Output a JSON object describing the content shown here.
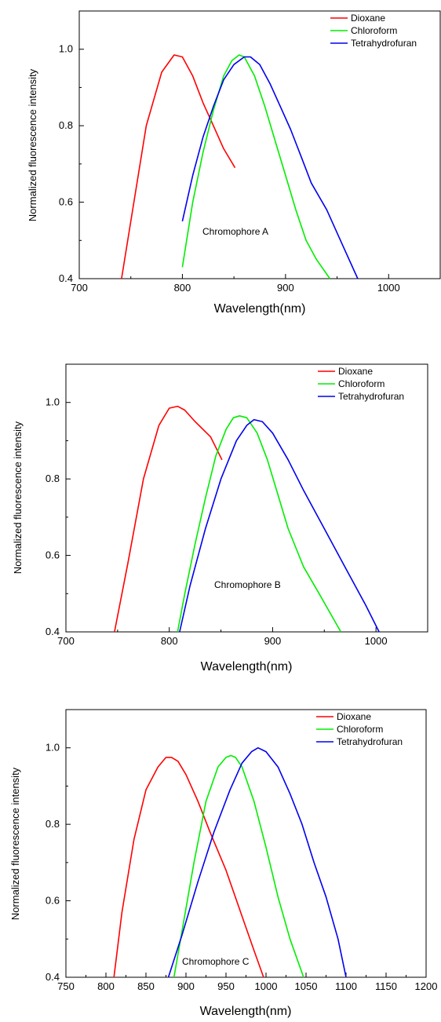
{
  "chart_data": [
    {
      "type": "line",
      "annotation": "Chromophore A",
      "xlabel": "Wavelength(nm)",
      "ylabel": "Normalized fluorescence intensity",
      "xlim": [
        700,
        1050
      ],
      "ylim": [
        0.4,
        1.1
      ],
      "xticks": [
        700,
        800,
        900,
        1000
      ],
      "xtick_labels": [
        "700",
        "800",
        "900",
        "1000"
      ],
      "yticks": [
        0.4,
        0.6,
        0.8,
        1.0
      ],
      "ytick_labels": [
        "0.4",
        "0.6",
        "0.8",
        "1.0"
      ],
      "legend_position": "top-right",
      "series": [
        {
          "name": "Dioxane",
          "color": "#ff0000",
          "x": [
            741,
            750,
            765,
            780,
            792,
            800,
            810,
            820,
            830,
            840,
            851
          ],
          "y": [
            0.4,
            0.55,
            0.8,
            0.94,
            0.985,
            0.98,
            0.93,
            0.86,
            0.8,
            0.74,
            0.69
          ]
        },
        {
          "name": "Chloroform",
          "color": "#00ee00",
          "x": [
            800,
            810,
            820,
            830,
            840,
            848,
            855,
            860,
            870,
            880,
            890,
            900,
            910,
            920,
            930,
            943
          ],
          "y": [
            0.43,
            0.6,
            0.73,
            0.84,
            0.93,
            0.97,
            0.985,
            0.98,
            0.93,
            0.85,
            0.76,
            0.67,
            0.58,
            0.5,
            0.45,
            0.4
          ]
        },
        {
          "name": "Tetrahydrofuran",
          "color": "#0000ee",
          "x": [
            800,
            810,
            820,
            830,
            840,
            850,
            860,
            866,
            875,
            885,
            895,
            905,
            915,
            925,
            940,
            955,
            970
          ],
          "y": [
            0.55,
            0.67,
            0.77,
            0.85,
            0.92,
            0.96,
            0.98,
            0.98,
            0.96,
            0.91,
            0.85,
            0.79,
            0.72,
            0.65,
            0.58,
            0.49,
            0.4
          ]
        }
      ]
    },
    {
      "type": "line",
      "annotation": "Chromophore B",
      "xlabel": "Wavelength(nm)",
      "ylabel": "Normalized fluorescence intensity",
      "xlim": [
        700,
        1050
      ],
      "ylim": [
        0.4,
        1.1
      ],
      "xticks": [
        700,
        800,
        900,
        1000
      ],
      "xtick_labels": [
        "700",
        "800",
        "900",
        "1000"
      ],
      "yticks": [
        0.4,
        0.6,
        0.8,
        1.0
      ],
      "ytick_labels": [
        "0.4",
        "0.6",
        "0.8",
        "1.0"
      ],
      "legend_position": "top-right",
      "series": [
        {
          "name": "Dioxane",
          "color": "#ff0000",
          "x": [
            747,
            760,
            775,
            790,
            800,
            808,
            815,
            825,
            840,
            851
          ],
          "y": [
            0.4,
            0.58,
            0.8,
            0.94,
            0.985,
            0.99,
            0.98,
            0.95,
            0.91,
            0.85
          ]
        },
        {
          "name": "Chloroform",
          "color": "#00ee00",
          "x": [
            808,
            815,
            825,
            835,
            845,
            855,
            862,
            868,
            875,
            885,
            895,
            905,
            915,
            930,
            945,
            966
          ],
          "y": [
            0.4,
            0.5,
            0.63,
            0.75,
            0.86,
            0.93,
            0.96,
            0.965,
            0.96,
            0.92,
            0.85,
            0.76,
            0.67,
            0.57,
            0.5,
            0.4
          ]
        },
        {
          "name": "Tetrahydrofuran",
          "color": "#0000ee",
          "x": [
            810,
            820,
            835,
            850,
            865,
            875,
            882,
            890,
            900,
            915,
            930,
            950,
            970,
            990,
            1003
          ],
          "y": [
            0.4,
            0.52,
            0.67,
            0.8,
            0.9,
            0.94,
            0.955,
            0.95,
            0.92,
            0.85,
            0.77,
            0.67,
            0.57,
            0.47,
            0.4
          ]
        }
      ]
    },
    {
      "type": "line",
      "annotation": "Chromophore C",
      "xlabel": "Wavelength(nm)",
      "ylabel": "Normalized fluorescence intensity",
      "xlim": [
        750,
        1200
      ],
      "ylim": [
        0.4,
        1.1
      ],
      "xticks": [
        750,
        800,
        850,
        900,
        950,
        1000,
        1050,
        1100,
        1150,
        1200
      ],
      "xtick_labels": [
        "750",
        "800",
        "850",
        "900",
        "950",
        "1000",
        "1050",
        "1100",
        "1150",
        "1200"
      ],
      "yticks": [
        0.4,
        0.6,
        0.8,
        1.0
      ],
      "ytick_labels": [
        "0.4",
        "0.6",
        "0.8",
        "1.0"
      ],
      "legend_position": "top-right",
      "series": [
        {
          "name": "Dioxane",
          "color": "#ff0000",
          "x": [
            810,
            820,
            835,
            850,
            865,
            875,
            882,
            890,
            900,
            915,
            930,
            950,
            970,
            985,
            997
          ],
          "y": [
            0.4,
            0.57,
            0.76,
            0.89,
            0.95,
            0.975,
            0.975,
            0.965,
            0.93,
            0.86,
            0.78,
            0.68,
            0.56,
            0.47,
            0.4
          ]
        },
        {
          "name": "Chloroform",
          "color": "#00ee00",
          "x": [
            885,
            895,
            910,
            925,
            940,
            950,
            956,
            962,
            970,
            985,
            1000,
            1015,
            1030,
            1047
          ],
          "y": [
            0.4,
            0.52,
            0.7,
            0.86,
            0.95,
            0.975,
            0.98,
            0.975,
            0.95,
            0.86,
            0.74,
            0.61,
            0.5,
            0.4
          ]
        },
        {
          "name": "Tetrahydrofuran",
          "color": "#0000ee",
          "x": [
            878,
            895,
            915,
            935,
            955,
            970,
            982,
            990,
            1000,
            1015,
            1030,
            1045,
            1060,
            1075,
            1090,
            1100
          ],
          "y": [
            0.4,
            0.51,
            0.65,
            0.78,
            0.89,
            0.96,
            0.99,
            1.0,
            0.99,
            0.95,
            0.88,
            0.8,
            0.7,
            0.61,
            0.5,
            0.4
          ]
        }
      ]
    }
  ]
}
